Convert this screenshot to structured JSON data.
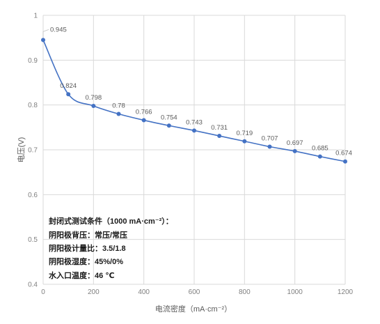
{
  "chart_data": {
    "type": "line",
    "xlabel": "电流密度（mA·cm⁻²）",
    "ylabel": "电压(V)",
    "xlim": [
      0,
      1200
    ],
    "ylim": [
      0.4,
      1.0
    ],
    "xticks": [
      0,
      200,
      400,
      600,
      800,
      1000,
      1200
    ],
    "yticks": [
      0.4,
      0.5,
      0.6,
      0.7,
      0.8,
      0.9,
      1.0
    ],
    "xtick_labels": [
      "0",
      "200",
      "400",
      "600",
      "800",
      "1000",
      "1200"
    ],
    "ytick_labels": [
      "0.4",
      "0.5",
      "0.6",
      "0.7",
      "0.8",
      "0.9",
      "1"
    ],
    "grid": true,
    "series": [
      {
        "x": [
          0,
          100,
          200,
          300,
          400,
          500,
          600,
          700,
          800,
          900,
          1000,
          1100,
          1200
        ],
        "y": [
          0.945,
          0.824,
          0.798,
          0.78,
          0.766,
          0.754,
          0.743,
          0.731,
          0.719,
          0.707,
          0.697,
          0.685,
          0.674
        ],
        "labels": [
          "0.945",
          "0.824",
          "0.798",
          "0.78",
          "0.766",
          "0.754",
          "0.743",
          "0.731",
          "0.719",
          "0.707",
          "0.697",
          "0.685",
          "0.674"
        ],
        "color": "#4472c4"
      }
    ],
    "annotations": [
      "封闭式测试条件（1000 mA·cm⁻²）：",
      "阴阳极背压：常压/常压",
      "阴阳极计量比：3.5/1.8",
      "阴阳极湿度：45%/0%",
      "水入口温度：46 ℃"
    ]
  }
}
